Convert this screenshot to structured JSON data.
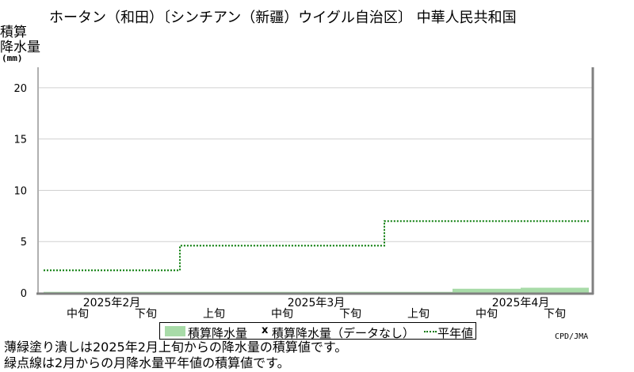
{
  "title": "ホータン（和田）〔シンチアン（新疆）ウイグル自治区〕 中華人民共和国",
  "y_label_line1": "積算",
  "y_label_line2": "降水量",
  "y_unit": "(mm)",
  "credit": "CPD/JMA",
  "legend": {
    "observed": "積算降水量",
    "missing_marker": "x",
    "missing": "積算降水量（データなし）",
    "normal": "平年値"
  },
  "notes": [
    "薄緑塗り潰しは2025年2月上旬からの降水量の積算値です。",
    "緑点線は2月からの月降水量平年値の積算値です。"
  ],
  "chart_data": {
    "type": "area",
    "ylim": [
      0,
      22
    ],
    "yticks": [
      0,
      5,
      10,
      15,
      20
    ],
    "grid": true,
    "categories": [
      "2月中旬",
      "2月下旬",
      "3月上旬",
      "3月中旬",
      "3月下旬",
      "4月上旬",
      "4月中旬",
      "4月下旬"
    ],
    "dekad_labels": [
      "中旬",
      "下旬",
      "上旬",
      "中旬",
      "下旬",
      "上旬",
      "中旬",
      "下旬"
    ],
    "month_labels": [
      {
        "label": "2025年2月",
        "position": 0.5
      },
      {
        "label": "2025年3月",
        "position": 3.5
      },
      {
        "label": "2025年4月",
        "position": 6.5
      }
    ],
    "series": [
      {
        "name": "積算降水量",
        "style": "fill",
        "color": "#a8dba8",
        "values": [
          0.1,
          0.1,
          0.1,
          0.1,
          0.1,
          0.1,
          0.4,
          0.5
        ]
      },
      {
        "name": "平年値",
        "style": "dotted-step",
        "color": "#007700",
        "values": [
          2.2,
          2.2,
          4.6,
          4.6,
          4.6,
          7.0,
          7.0,
          7.0
        ]
      }
    ]
  }
}
